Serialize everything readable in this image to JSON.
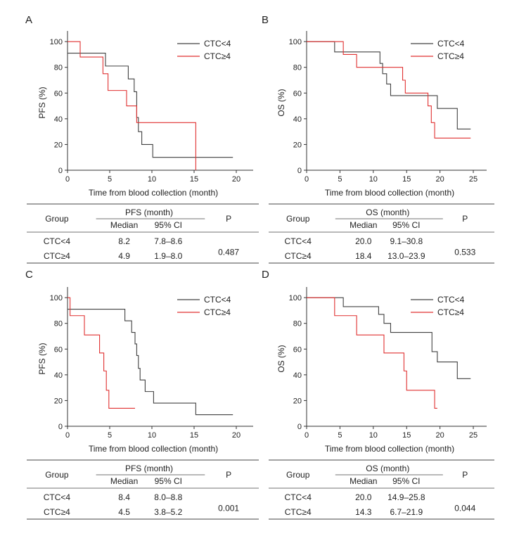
{
  "chart_data": [
    {
      "panel_label": "A",
      "type": "line",
      "ylabel": "PFS (%)",
      "xlabel": "Time from blood collection (month)",
      "xlim": [
        0,
        22
      ],
      "ylim": [
        0,
        105
      ],
      "xticks": [
        0,
        5,
        10,
        15,
        20
      ],
      "yticks": [
        0,
        20,
        40,
        60,
        80,
        100
      ],
      "grid": false,
      "legend_position": "top-right",
      "series": [
        {
          "name": "CTC<4",
          "color": "#404040",
          "x": [
            0,
            4.5,
            7.2,
            7.9,
            8.2,
            8.4,
            8.8,
            10.1,
            19.6
          ],
          "y": [
            91,
            81,
            71,
            61,
            41,
            30,
            20,
            10,
            10
          ]
        },
        {
          "name": "CTC≥4",
          "color": "#e03030",
          "x": [
            0,
            1.5,
            4.2,
            4.8,
            7.0,
            8.2,
            15.2,
            15.2
          ],
          "y": [
            100,
            88,
            75,
            62,
            50,
            37,
            19,
            0
          ]
        }
      ],
      "table": {
        "group_header": "Group",
        "metric_header": "PFS (month)",
        "median_header": "Median",
        "ci_header": "95% CI",
        "p_header": "P",
        "p_value": "0.487",
        "rows": [
          {
            "group": "CTC<4",
            "median": "8.2",
            "ci": "7.8–8.6"
          },
          {
            "group": "CTC≥4",
            "median": "4.9",
            "ci": "1.9–8.0"
          }
        ]
      }
    },
    {
      "panel_label": "B",
      "type": "line",
      "ylabel": "OS (%)",
      "xlabel": "Time from blood collection (month)",
      "xlim": [
        0,
        27
      ],
      "ylim": [
        0,
        105
      ],
      "xticks": [
        0,
        5,
        10,
        15,
        20,
        25
      ],
      "yticks": [
        0,
        20,
        40,
        60,
        80,
        100
      ],
      "grid": false,
      "legend_position": "top-right",
      "series": [
        {
          "name": "CTC<4",
          "color": "#404040",
          "x": [
            0,
            4.2,
            11.0,
            11.4,
            12.0,
            12.6,
            13.2,
            18.8,
            19.6,
            22.6,
            24.6
          ],
          "y": [
            100,
            92,
            83,
            75,
            67,
            58,
            58,
            58,
            48,
            32,
            32
          ]
        },
        {
          "name": "CTC≥4",
          "color": "#e03030",
          "x": [
            0,
            5.5,
            7.5,
            12.0,
            14.4,
            14.8,
            18.2,
            18.7,
            19.2,
            24.6
          ],
          "y": [
            100,
            90,
            80,
            80,
            70,
            60,
            50,
            37,
            25,
            25
          ]
        }
      ],
      "table": {
        "group_header": "Group",
        "metric_header": "OS (month)",
        "median_header": "Median",
        "ci_header": "95% CI",
        "p_header": "P",
        "p_value": "0.533",
        "rows": [
          {
            "group": "CTC<4",
            "median": "20.0",
            "ci": "9.1–30.8"
          },
          {
            "group": "CTC≥4",
            "median": "18.4",
            "ci": "13.0–23.9"
          }
        ]
      }
    },
    {
      "panel_label": "C",
      "type": "line",
      "ylabel": "PFS (%)",
      "xlabel": "Time from blood collection (month)",
      "xlim": [
        0,
        22
      ],
      "ylim": [
        0,
        105
      ],
      "xticks": [
        0,
        5,
        10,
        15,
        20
      ],
      "yticks": [
        0,
        20,
        40,
        60,
        80,
        100
      ],
      "grid": false,
      "legend_position": "top-right",
      "series": [
        {
          "name": "CTC<4",
          "color": "#404040",
          "x": [
            0,
            6.8,
            7.6,
            8.0,
            8.2,
            8.4,
            8.6,
            9.2,
            10.2,
            15.2,
            19.6
          ],
          "y": [
            91,
            82,
            73,
            64,
            55,
            45,
            36,
            27,
            18,
            9,
            9
          ]
        },
        {
          "name": "CTC≥4",
          "color": "#e03030",
          "x": [
            0,
            0.3,
            2.0,
            3.8,
            4.3,
            4.6,
            4.9,
            8.0
          ],
          "y": [
            100,
            86,
            71,
            57,
            43,
            28,
            14,
            14
          ]
        }
      ],
      "table": {
        "group_header": "Group",
        "metric_header": "PFS (month)",
        "median_header": "Median",
        "ci_header": "95% CI",
        "p_header": "P",
        "p_value": "0.001",
        "rows": [
          {
            "group": "CTC<4",
            "median": "8.4",
            "ci": "8.0–8.8"
          },
          {
            "group": "CTC≥4",
            "median": "4.5",
            "ci": "3.8–5.2"
          }
        ]
      }
    },
    {
      "panel_label": "D",
      "type": "line",
      "ylabel": "OS (%)",
      "xlabel": "Time from blood collection (month)",
      "xlim": [
        0,
        27
      ],
      "ylim": [
        0,
        105
      ],
      "xticks": [
        0,
        5,
        10,
        15,
        20,
        25
      ],
      "yticks": [
        0,
        20,
        40,
        60,
        80,
        100
      ],
      "grid": false,
      "legend_position": "top-right",
      "series": [
        {
          "name": "CTC<4",
          "color": "#404040",
          "x": [
            0,
            5.5,
            10.8,
            11.6,
            12.6,
            16.8,
            18.8,
            19.6,
            22.6,
            24.6
          ],
          "y": [
            100,
            93,
            87,
            80,
            73,
            73,
            58,
            50,
            37,
            37
          ]
        },
        {
          "name": "CTC≥4",
          "color": "#e03030",
          "x": [
            0,
            4.2,
            7.5,
            11.6,
            14.6,
            15.0,
            19.2,
            19.6
          ],
          "y": [
            100,
            86,
            71,
            57,
            43,
            28,
            14,
            14
          ]
        }
      ],
      "table": {
        "group_header": "Group",
        "metric_header": "OS (month)",
        "median_header": "Median",
        "ci_header": "95% CI",
        "p_header": "P",
        "p_value": "0.044",
        "rows": [
          {
            "group": "CTC<4",
            "median": "20.0",
            "ci": "14.9–25.8"
          },
          {
            "group": "CTC≥4",
            "median": "14.3",
            "ci": "6.7–21.9"
          }
        ]
      }
    }
  ]
}
